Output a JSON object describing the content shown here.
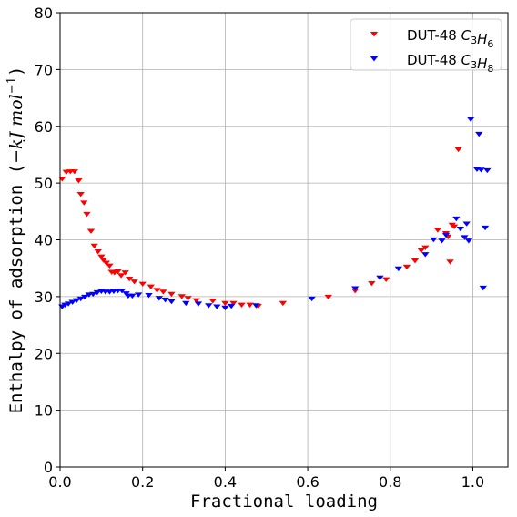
{
  "chart_data": {
    "type": "scatter",
    "title": "",
    "xlabel": "Fractional loading",
    "ylabel": "Enthalpy of adsorption (−kJ mol⁻¹)",
    "ylabel_parts": {
      "main": "Enthalpy of adsorption (",
      "minus": "−",
      "unit1": "kJ mol",
      "exp": "−1",
      "close": ")"
    },
    "xlim": [
      0.0,
      1.085
    ],
    "ylim": [
      0,
      80
    ],
    "x_ticks": [
      0.0,
      0.2,
      0.4,
      0.6,
      0.8,
      1.0
    ],
    "x_tick_labels": [
      "0.0",
      "0.2",
      "0.4",
      "0.6",
      "0.8",
      "1.0"
    ],
    "y_ticks": [
      0,
      10,
      20,
      30,
      40,
      50,
      60,
      70,
      80
    ],
    "y_tick_labels": [
      "0",
      "10",
      "20",
      "30",
      "40",
      "50",
      "60",
      "70",
      "80"
    ],
    "grid": true,
    "marker": "triangle-down",
    "legend_position": "top-right",
    "series": [
      {
        "name": "DUT-48 C3H6",
        "legend_prefix": "DUT-48 ",
        "legend_formula": [
          [
            "C",
            "3"
          ],
          [
            "H",
            "6"
          ]
        ],
        "color": "#ff0000",
        "points": [
          [
            0.005,
            50.8
          ],
          [
            0.015,
            52.0
          ],
          [
            0.025,
            52.1
          ],
          [
            0.035,
            52.1
          ],
          [
            0.045,
            50.5
          ],
          [
            0.05,
            48.1
          ],
          [
            0.058,
            46.6
          ],
          [
            0.065,
            44.6
          ],
          [
            0.075,
            41.6
          ],
          [
            0.083,
            39.0
          ],
          [
            0.092,
            38.0
          ],
          [
            0.1,
            37.1
          ],
          [
            0.105,
            36.5
          ],
          [
            0.112,
            36.0
          ],
          [
            0.12,
            35.5
          ],
          [
            0.125,
            34.4
          ],
          [
            0.132,
            34.3
          ],
          [
            0.14,
            34.5
          ],
          [
            0.148,
            33.8
          ],
          [
            0.158,
            34.3
          ],
          [
            0.168,
            33.2
          ],
          [
            0.18,
            32.7
          ],
          [
            0.2,
            32.3
          ],
          [
            0.22,
            31.8
          ],
          [
            0.235,
            31.2
          ],
          [
            0.25,
            30.9
          ],
          [
            0.27,
            30.5
          ],
          [
            0.295,
            30.1
          ],
          [
            0.31,
            29.8
          ],
          [
            0.33,
            29.4
          ],
          [
            0.37,
            29.3
          ],
          [
            0.4,
            28.9
          ],
          [
            0.42,
            28.9
          ],
          [
            0.44,
            28.6
          ],
          [
            0.46,
            28.6
          ],
          [
            0.48,
            28.4
          ],
          [
            0.54,
            28.9
          ],
          [
            0.65,
            30.0
          ],
          [
            0.715,
            31.1
          ],
          [
            0.755,
            32.4
          ],
          [
            0.79,
            33.1
          ],
          [
            0.84,
            35.3
          ],
          [
            0.86,
            36.4
          ],
          [
            0.875,
            38.2
          ],
          [
            0.885,
            38.7
          ],
          [
            0.915,
            41.8
          ],
          [
            0.935,
            41.2
          ],
          [
            0.94,
            40.6
          ],
          [
            0.945,
            36.2
          ],
          [
            0.95,
            42.7
          ],
          [
            0.955,
            42.4
          ],
          [
            0.965,
            56.0
          ]
        ]
      },
      {
        "name": "DUT-48 C3H8",
        "legend_prefix": "DUT-48 ",
        "legend_formula": [
          [
            "C",
            "3"
          ],
          [
            "H",
            "8"
          ]
        ],
        "color": "#0000ff",
        "points": [
          [
            0.005,
            28.3
          ],
          [
            0.012,
            28.6
          ],
          [
            0.02,
            28.8
          ],
          [
            0.03,
            29.1
          ],
          [
            0.04,
            29.4
          ],
          [
            0.05,
            29.7
          ],
          [
            0.06,
            30.0
          ],
          [
            0.07,
            30.4
          ],
          [
            0.08,
            30.5
          ],
          [
            0.09,
            30.8
          ],
          [
            0.1,
            31.0
          ],
          [
            0.11,
            30.9
          ],
          [
            0.12,
            30.9
          ],
          [
            0.13,
            31.0
          ],
          [
            0.14,
            31.1
          ],
          [
            0.15,
            31.1
          ],
          [
            0.16,
            30.6
          ],
          [
            0.165,
            30.2
          ],
          [
            0.175,
            30.2
          ],
          [
            0.19,
            30.4
          ],
          [
            0.215,
            30.3
          ],
          [
            0.24,
            29.8
          ],
          [
            0.255,
            29.5
          ],
          [
            0.27,
            29.2
          ],
          [
            0.305,
            28.9
          ],
          [
            0.335,
            28.8
          ],
          [
            0.36,
            28.5
          ],
          [
            0.38,
            28.3
          ],
          [
            0.4,
            28.1
          ],
          [
            0.415,
            28.4
          ],
          [
            0.475,
            28.5
          ],
          [
            0.61,
            29.7
          ],
          [
            0.715,
            31.5
          ],
          [
            0.775,
            33.4
          ],
          [
            0.82,
            35.0
          ],
          [
            0.885,
            37.5
          ],
          [
            0.905,
            40.1
          ],
          [
            0.925,
            39.9
          ],
          [
            0.935,
            40.9
          ],
          [
            0.96,
            43.8
          ],
          [
            0.97,
            42.0
          ],
          [
            0.98,
            40.5
          ],
          [
            0.985,
            42.9
          ],
          [
            0.99,
            39.9
          ],
          [
            0.995,
            61.3
          ],
          [
            1.01,
            52.5
          ],
          [
            1.015,
            58.7
          ],
          [
            1.02,
            52.4
          ],
          [
            1.025,
            31.6
          ],
          [
            1.03,
            42.2
          ],
          [
            1.035,
            52.3
          ]
        ]
      }
    ]
  }
}
